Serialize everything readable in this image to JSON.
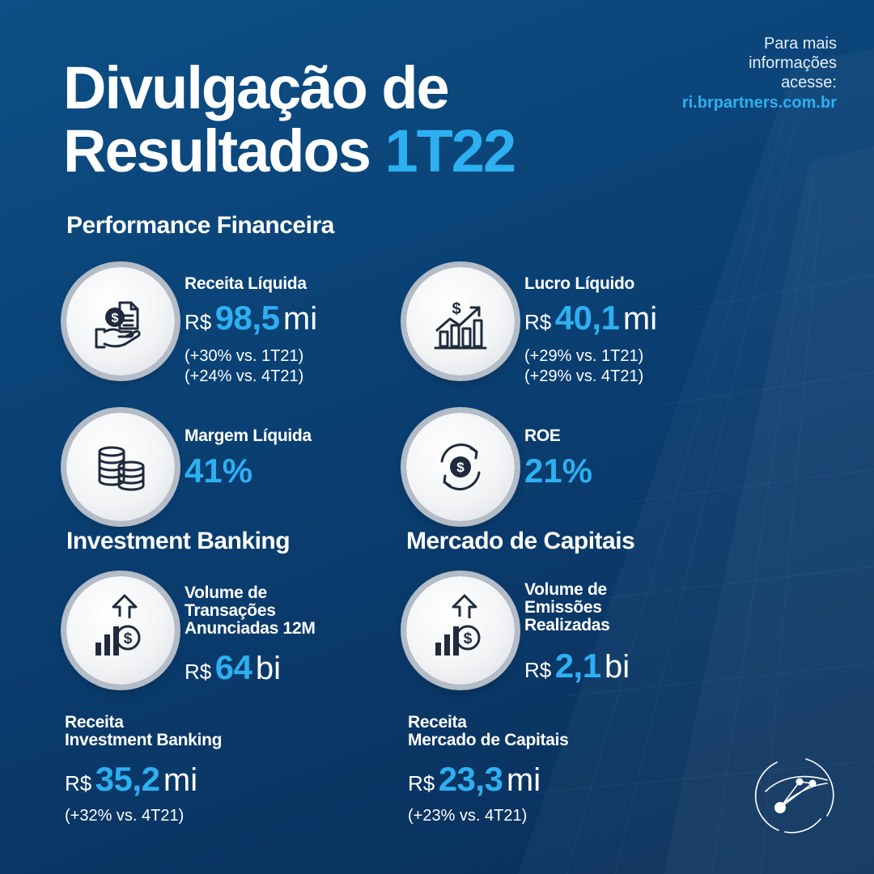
{
  "header": {
    "title_line1": "Divulgação de",
    "title_line2": "Resultados",
    "title_accent": "1T22",
    "info_lines": [
      "Para mais",
      "informações",
      "acesse:"
    ],
    "info_site": "ri.brpartners.com.br"
  },
  "performance": {
    "section_title": "Performance Financeira",
    "receita_liquida": {
      "label": "Receita Líquida",
      "currency": "R$",
      "value": "98,5",
      "unit": "mi",
      "notes": [
        "(+30% vs. 1T21)",
        "(+24% vs. 4T21)"
      ],
      "icon": "money-hand-icon"
    },
    "lucro_liquido": {
      "label": "Lucro Líquido",
      "currency": "R$",
      "value": "40,1",
      "unit": "mi",
      "notes": [
        "(+29% vs. 1T21)",
        "(+29% vs. 4T21)"
      ],
      "icon": "growth-chart-icon"
    },
    "margem_liquida": {
      "label": "Margem Líquida",
      "value": "41%",
      "icon": "coin-stacks-icon"
    },
    "roe": {
      "label": "ROE",
      "value": "21%",
      "icon": "dollar-cycle-icon"
    }
  },
  "investment_banking": {
    "section_title": "Investment Banking",
    "volume": {
      "label_lines": [
        "Volume de",
        "Transações",
        "Anunciadas 12M"
      ],
      "currency": "R$",
      "value": "64",
      "unit": "bi",
      "icon": "bar-dollar-arrow-icon"
    },
    "receita": {
      "label_lines": [
        "Receita",
        "Investment Banking"
      ],
      "currency": "R$",
      "value": "35,2",
      "unit": "mi",
      "note": "(+32% vs. 4T21)"
    }
  },
  "mercado_capitais": {
    "section_title": "Mercado de Capitais",
    "volume": {
      "label_lines": [
        "Volume de",
        "Emissões",
        "Realizadas"
      ],
      "currency": "R$",
      "value": "2,1",
      "unit": "bi",
      "icon": "bar-dollar-arrow-icon"
    },
    "receita": {
      "label_lines": [
        "Receita",
        "Mercado de Capitais"
      ],
      "currency": "R$",
      "value": "23,3",
      "unit": "mi",
      "note": "(+23% vs. 4T21)"
    }
  },
  "colors": {
    "background_top": "#0d4f86",
    "background_bottom": "#0a2f5a",
    "accent": "#2db0f2",
    "icon_dark": "#1f2b3d",
    "circle_ring": "#b3bcc7"
  },
  "logo": {
    "icon": "globe-network-logo-icon"
  }
}
